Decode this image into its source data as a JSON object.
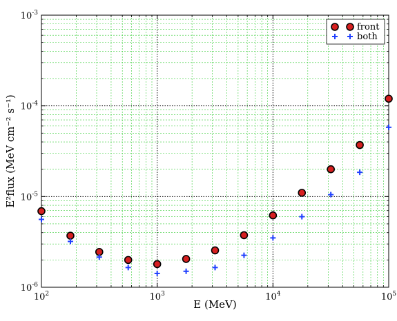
{
  "chart_data": {
    "type": "scatter",
    "xscale": "log",
    "yscale": "log",
    "xlim": [
      100,
      100000
    ],
    "ylim": [
      1e-06,
      0.001
    ],
    "xlabel": "E (MeV)",
    "ylabel": "E²flux (MeV cm⁻² s⁻¹)",
    "grid": true,
    "legend_position": "top-right",
    "x_ticks": [
      {
        "value": 100,
        "base": "10",
        "exp": "2"
      },
      {
        "value": 1000,
        "base": "10",
        "exp": "3"
      },
      {
        "value": 10000,
        "base": "10",
        "exp": "4"
      },
      {
        "value": 100000,
        "base": "10",
        "exp": "5"
      }
    ],
    "y_ticks": [
      {
        "value": 1e-06,
        "base": "10",
        "exp": "-6"
      },
      {
        "value": 1e-05,
        "base": "10",
        "exp": "-5"
      },
      {
        "value": 0.0001,
        "base": "10",
        "exp": "-4"
      },
      {
        "value": 0.001,
        "base": "10",
        "exp": "-3"
      }
    ],
    "series": [
      {
        "name": "front",
        "marker": "circle",
        "fill_color": "#d62020",
        "edge_color": "#000000",
        "x": [
          100,
          178,
          316,
          562,
          1000,
          1778,
          3162,
          5623,
          10000,
          17783,
          31623,
          56234,
          100000
        ],
        "y": [
          6.9e-06,
          3.7e-06,
          2.45e-06,
          2e-06,
          1.8e-06,
          2.05e-06,
          2.55e-06,
          3.75e-06,
          6.2e-06,
          1.1e-05,
          2e-05,
          3.7e-05,
          0.00012
        ]
      },
      {
        "name": "both",
        "marker": "plus",
        "fill_color": "#1f3fff",
        "edge_color": "#1f3fff",
        "x": [
          100,
          178,
          316,
          562,
          1000,
          1778,
          3162,
          5623,
          10000,
          17783,
          31623,
          56234,
          100000
        ],
        "y": [
          5.6e-06,
          3.2e-06,
          2.15e-06,
          1.65e-06,
          1.42e-06,
          1.5e-06,
          1.65e-06,
          2.25e-06,
          3.5e-06,
          6e-06,
          1.05e-05,
          1.85e-05,
          5.8e-05
        ]
      }
    ]
  }
}
